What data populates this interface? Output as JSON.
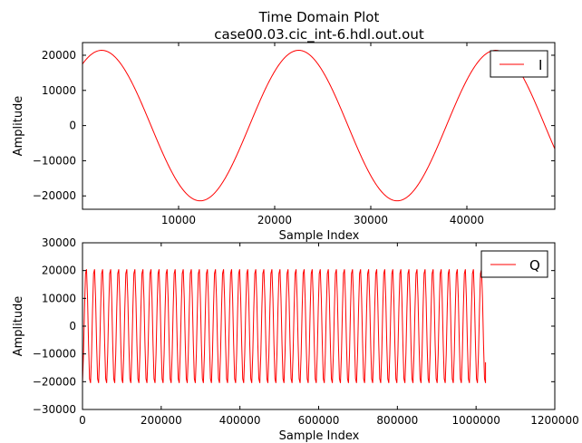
{
  "figure": {
    "title_line1": "Time Domain Plot",
    "title_line2": "case00.03.cic_int-6.hdl.out.out"
  },
  "chart_data": [
    {
      "type": "line",
      "xlabel": "Sample Index",
      "ylabel": "Amplitude",
      "xlim": [
        0,
        49152
      ],
      "ylim": [
        -23800,
        23600
      ],
      "xticks": [
        10000,
        20000,
        30000,
        40000
      ],
      "xtick_labels": [
        "10000",
        "20000",
        "30000",
        "40000"
      ],
      "yticks": [
        -20000,
        -10000,
        0,
        10000,
        20000
      ],
      "ytick_labels": [
        "−20000",
        "−10000",
        "0",
        "10000",
        "20000"
      ],
      "legend": "top-right",
      "series": [
        {
          "name": "I",
          "color": "#ff0000",
          "form": "sinusoid",
          "amplitude": 21400,
          "period": 20500,
          "peak_at": 22500,
          "x_range": [
            0,
            49152
          ]
        }
      ]
    },
    {
      "type": "line",
      "xlabel": "Sample Index",
      "ylabel": "Amplitude",
      "xlim": [
        0,
        1200000
      ],
      "ylim": [
        -30000,
        30000
      ],
      "xticks": [
        0,
        200000,
        400000,
        600000,
        800000,
        1000000,
        1200000
      ],
      "xtick_labels": [
        "0",
        "200000",
        "400000",
        "600000",
        "800000",
        "1000000",
        "1200000"
      ],
      "yticks": [
        -30000,
        -20000,
        -10000,
        0,
        10000,
        20000,
        30000
      ],
      "ytick_labels": [
        "−30000",
        "−20000",
        "−10000",
        "0",
        "10000",
        "20000",
        "30000"
      ],
      "legend": "top-right",
      "series": [
        {
          "name": "Q",
          "color": "#ff0000",
          "form": "sinusoid",
          "amplitude": 21400,
          "cycles": 50,
          "x_range": [
            0,
            1024000
          ],
          "end_value": -13000
        }
      ]
    }
  ]
}
